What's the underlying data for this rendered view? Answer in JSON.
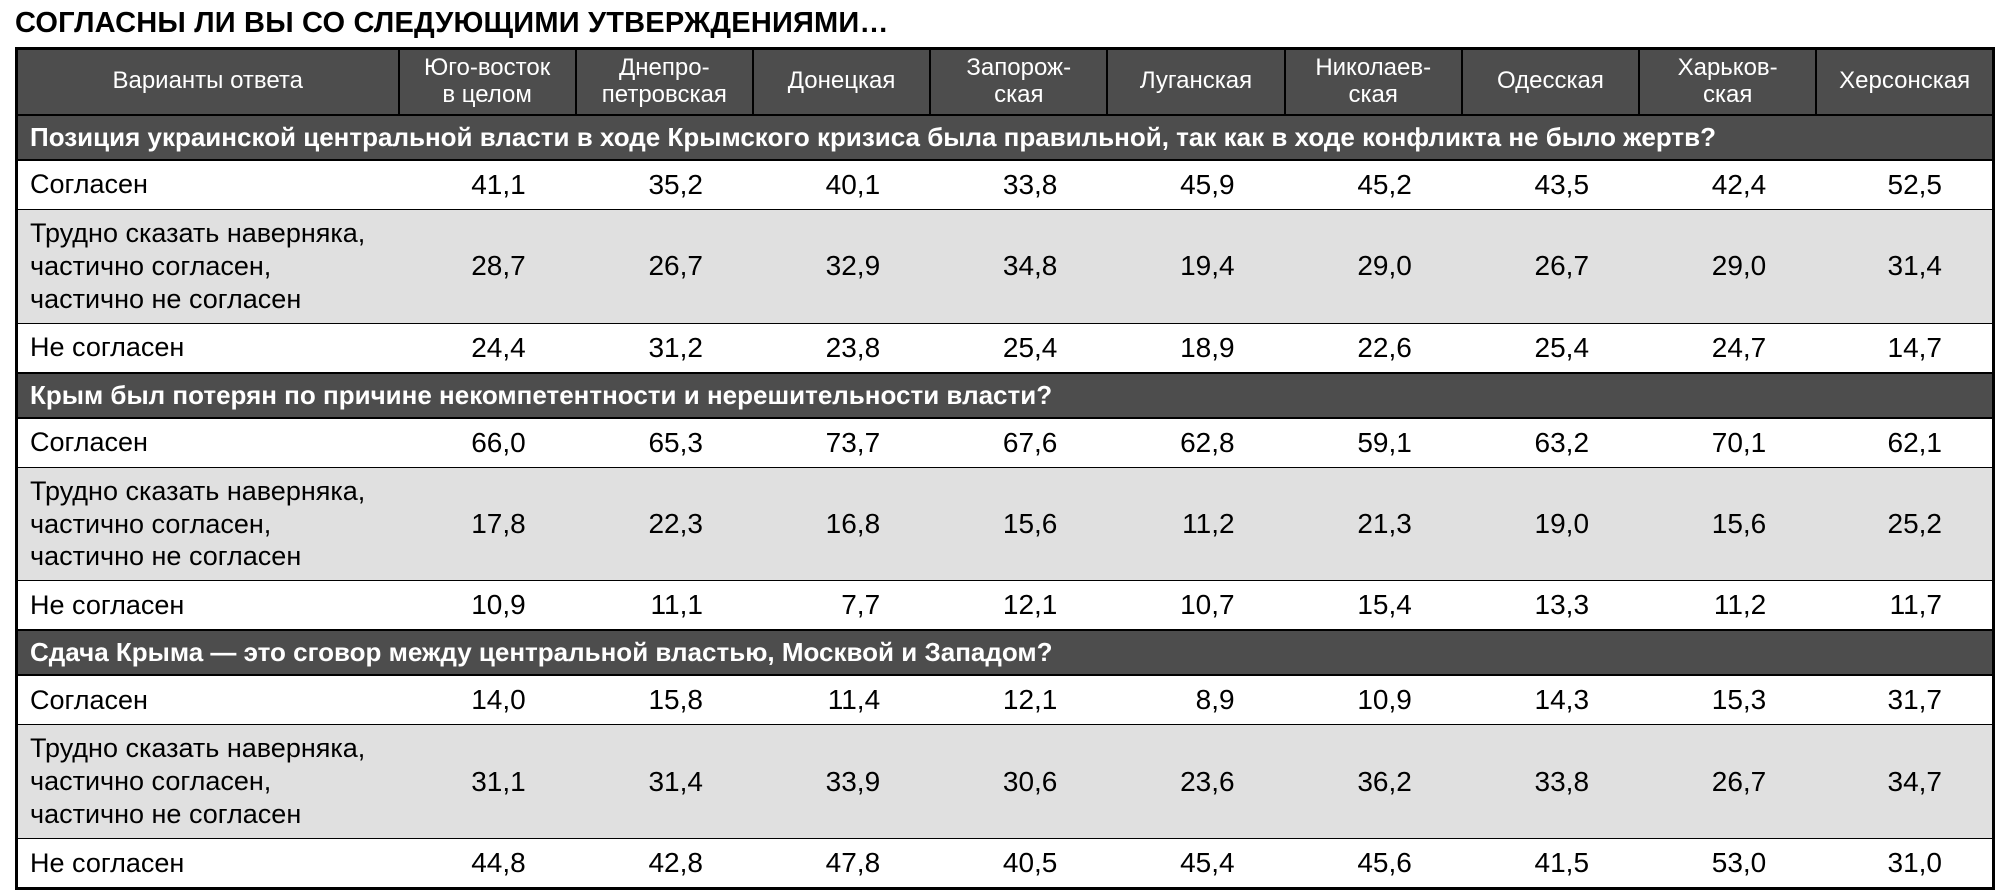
{
  "colors": {
    "header_bg": "#4d4d4d",
    "header_text": "#ffffff",
    "question_bg": "#4d4d4d",
    "question_text": "#ffffff",
    "row_bg": "#ffffff",
    "row_shaded_bg": "#e0e0e0",
    "border": "#000000",
    "text": "#000000"
  },
  "chart_data": {
    "type": "table",
    "title": "СОГЛАСНЫ ЛИ ВЫ СО СЛЕДУЮЩИМИ УТВЕРЖДЕНИЯМИ…",
    "number_format": "comma decimal, one fraction digit",
    "columns": [
      "Варианты ответа",
      "Юго-восток\nв целом",
      "Днепро-\nпетровская",
      "Донецкая",
      "Запорож-\nская",
      "Луганская",
      "Николаев-\nская",
      "Одесская",
      "Харьков-\nская",
      "Херсонская"
    ],
    "sections": [
      {
        "question": "Позиция украинской центральной власти в ходе Крымского кризиса была правильной, так как в ходе конфликта не было жертв?",
        "rows": [
          {
            "label": "Согласен",
            "values": [
              41.1,
              35.2,
              40.1,
              33.8,
              45.9,
              45.2,
              43.5,
              42.4,
              52.5
            ]
          },
          {
            "label": "Трудно сказать наверняка,\nчастично согласен,\nчастично не согласен",
            "values": [
              28.7,
              26.7,
              32.9,
              34.8,
              19.4,
              29.0,
              26.7,
              29.0,
              31.4
            ]
          },
          {
            "label": "Не согласен",
            "values": [
              24.4,
              31.2,
              23.8,
              25.4,
              18.9,
              22.6,
              25.4,
              24.7,
              14.7
            ]
          }
        ]
      },
      {
        "question": "Крым был потерян по причине некомпетентности и нерешительности власти?",
        "rows": [
          {
            "label": "Согласен",
            "values": [
              66.0,
              65.3,
              73.7,
              67.6,
              62.8,
              59.1,
              63.2,
              70.1,
              62.1
            ]
          },
          {
            "label": "Трудно сказать наверняка,\nчастично согласен,\nчастично не согласен",
            "values": [
              17.8,
              22.3,
              16.8,
              15.6,
              11.2,
              21.3,
              19.0,
              15.6,
              25.2
            ]
          },
          {
            "label": "Не согласен",
            "values": [
              10.9,
              11.1,
              7.7,
              12.1,
              10.7,
              15.4,
              13.3,
              11.2,
              11.7
            ]
          }
        ]
      },
      {
        "question": "Сдача Крыма — это сговор между центральной властью, Москвой и Западом?",
        "rows": [
          {
            "label": "Согласен",
            "values": [
              14.0,
              15.8,
              11.4,
              12.1,
              8.9,
              10.9,
              14.3,
              15.3,
              31.7
            ]
          },
          {
            "label": "Трудно сказать наверняка,\nчастично согласен,\nчастично не согласен",
            "values": [
              31.1,
              31.4,
              33.9,
              30.6,
              23.6,
              36.2,
              33.8,
              26.7,
              34.7
            ]
          },
          {
            "label": "Не согласен",
            "values": [
              44.8,
              42.8,
              47.8,
              40.5,
              45.4,
              45.6,
              41.5,
              53.0,
              31.0
            ]
          }
        ]
      }
    ]
  }
}
